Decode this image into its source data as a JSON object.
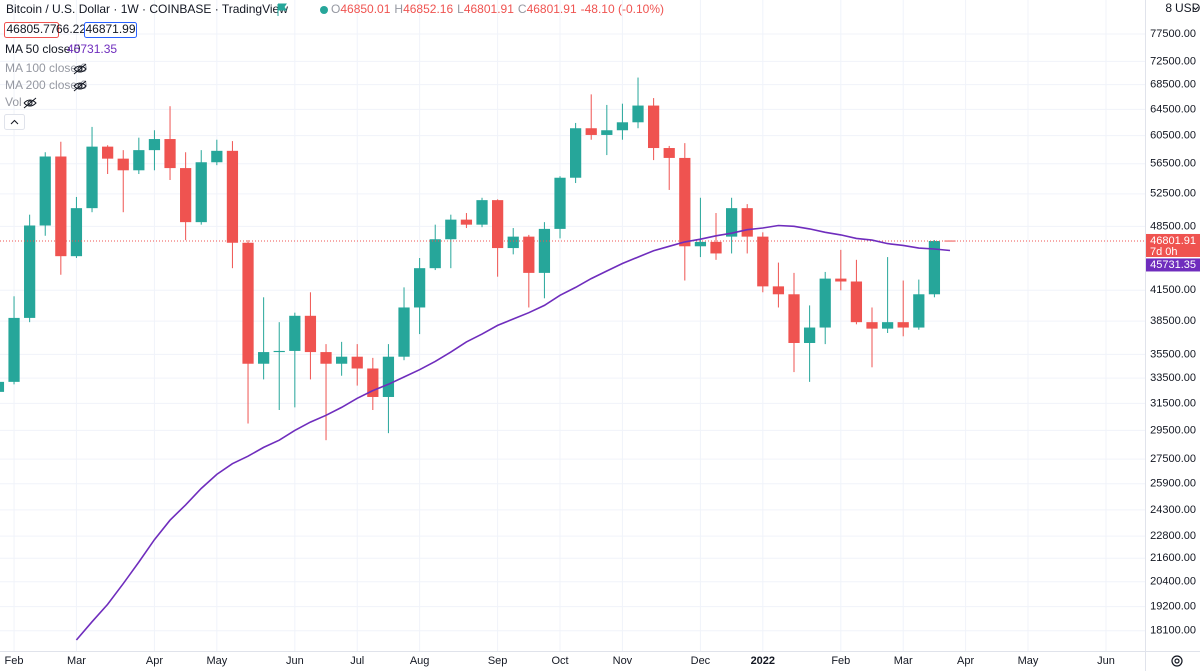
{
  "header": {
    "title": "Bitcoin / U.S. Dollar · 1W · COINBASE · TradingView",
    "ohlc_labels": [
      "O",
      "H",
      "L",
      "C"
    ],
    "change": "-48.10 (-0.10%)",
    "bid": "46805.77",
    "spread": "66.22",
    "ask": "46871.99"
  },
  "indicators": [
    "MA 100 close 0",
    "MA 200 close 0",
    "Vol"
  ],
  "axis": {
    "scale_count": "8",
    "currency": "USD",
    "countdown": "7d 0h"
  },
  "chart_data": {
    "type": "candlestick",
    "log_scale": true,
    "grid": true,
    "up_color": "#26a69a",
    "down_color": "#ef5350",
    "candles": {
      "open": [
        32400,
        33200,
        38800,
        48600,
        57500,
        45100,
        50700,
        58900,
        57200,
        55600,
        58400,
        60000,
        55900,
        49000,
        56700,
        58300,
        46600,
        34700,
        35700,
        35800,
        39000,
        35700,
        34700,
        35300,
        34300,
        32000,
        35300,
        39800,
        43800,
        47000,
        49300,
        48700,
        51700,
        46000,
        47300,
        43300,
        48200,
        54600,
        61600,
        60600,
        61300,
        62500,
        65100,
        58700,
        57300,
        46200,
        46700,
        47300,
        50700,
        47300,
        41900,
        41100,
        36500,
        37900,
        42700,
        42400,
        38400,
        37800,
        38400,
        37900,
        41100,
        46850.01
      ],
      "high": [
        33400,
        40900,
        49900,
        58100,
        59600,
        52100,
        61800,
        59100,
        58400,
        60200,
        61300,
        65000,
        58100,
        58400,
        59900,
        59700,
        46900,
        40800,
        38400,
        39300,
        41300,
        36400,
        36600,
        36400,
        35200,
        36400,
        41800,
        44900,
        48700,
        49900,
        50100,
        52000,
        51800,
        48300,
        47500,
        49000,
        54800,
        62400,
        66900,
        65200,
        65400,
        69700,
        66300,
        59000,
        59400,
        52000,
        50100,
        52000,
        51200,
        47800,
        44400,
        43300,
        40000,
        43400,
        45800,
        44700,
        39800,
        45000,
        42500,
        42600,
        46900,
        46852.16
      ],
      "low": [
        32200,
        33000,
        38400,
        47400,
        43100,
        44900,
        50200,
        55100,
        50200,
        55100,
        55600,
        54300,
        46900,
        48700,
        56300,
        43800,
        30000,
        33400,
        31000,
        31200,
        33400,
        28800,
        33700,
        32900,
        31000,
        29300,
        35000,
        37300,
        43600,
        43800,
        48300,
        48400,
        42900,
        45300,
        39800,
        40700,
        47100,
        53900,
        59900,
        57700,
        59900,
        61600,
        57000,
        53000,
        42500,
        45000,
        44700,
        45400,
        45400,
        41300,
        39800,
        34000,
        33200,
        36400,
        41500,
        38200,
        34400,
        37400,
        37100,
        37700,
        40800,
        46801.91
      ],
      "close": [
        33200,
        38800,
        48600,
        57500,
        45100,
        50700,
        58900,
        57200,
        55600,
        58400,
        60000,
        55900,
        49000,
        56700,
        58300,
        46600,
        34700,
        35700,
        35800,
        39000,
        35700,
        34700,
        35300,
        34300,
        32000,
        35300,
        39800,
        43800,
        47000,
        49300,
        48700,
        51700,
        46000,
        47300,
        43300,
        48200,
        54600,
        61600,
        60600,
        61300,
        62500,
        65100,
        58700,
        57300,
        46200,
        46700,
        45400,
        50700,
        47300,
        41900,
        41100,
        36500,
        37900,
        42700,
        42400,
        38400,
        37800,
        38400,
        37900,
        41100,
        46800,
        46801.91
      ]
    },
    "series": [
      {
        "name": "MA 50 close 0",
        "color": "#6f2dbd",
        "values": [
          null,
          null,
          null,
          null,
          null,
          17700,
          18500,
          19300,
          20300,
          21400,
          22600,
          23700,
          24600,
          25600,
          26500,
          27200,
          27700,
          28300,
          28800,
          29500,
          30100,
          30600,
          31200,
          31900,
          32500,
          33000,
          33600,
          34200,
          34900,
          35700,
          36600,
          37300,
          38100,
          38700,
          39300,
          40000,
          41000,
          41800,
          42700,
          43500,
          44300,
          45000,
          45700,
          46200,
          46700,
          47000,
          47400,
          47700,
          48100,
          48300,
          48600,
          48500,
          48200,
          47800,
          47500,
          47100,
          46900,
          46500,
          46300,
          46000,
          45900,
          45731.35
        ]
      }
    ],
    "ylim": [
      17230,
      84200
    ],
    "yticks": [
      {
        "value": 77500,
        "label": "77500.00"
      },
      {
        "value": 72500,
        "label": "72500.00"
      },
      {
        "value": 68500,
        "label": "68500.00"
      },
      {
        "value": 64500,
        "label": "64500.00"
      },
      {
        "value": 60500,
        "label": "60500.00"
      },
      {
        "value": 56500,
        "label": "56500.00"
      },
      {
        "value": 52500,
        "label": "52500.00"
      },
      {
        "value": 48500,
        "label": "48500.00"
      },
      {
        "value": 41500,
        "label": "41500.00"
      },
      {
        "value": 38500,
        "label": "38500.00"
      },
      {
        "value": 35500,
        "label": "35500.00"
      },
      {
        "value": 33500,
        "label": "33500.00"
      },
      {
        "value": 31500,
        "label": "31500.00"
      },
      {
        "value": 29500,
        "label": "29500.00"
      },
      {
        "value": 27500,
        "label": "27500.00"
      },
      {
        "value": 25900,
        "label": "25900.00"
      },
      {
        "value": 24300,
        "label": "24300.00"
      },
      {
        "value": 22800,
        "label": "22800.00"
      },
      {
        "value": 21600,
        "label": "21600.00"
      },
      {
        "value": 20400,
        "label": "20400.00"
      },
      {
        "value": 19200,
        "label": "19200.00"
      },
      {
        "value": 18100,
        "label": "18100.00"
      }
    ],
    "xlim": [
      0.1,
      73.5
    ],
    "xticks": [
      {
        "value": 1,
        "label": "Feb"
      },
      {
        "value": 5,
        "label": "Mar"
      },
      {
        "value": 10,
        "label": "Apr"
      },
      {
        "value": 14,
        "label": "May"
      },
      {
        "value": 19,
        "label": "Jun"
      },
      {
        "value": 23,
        "label": "Jul"
      },
      {
        "value": 27,
        "label": "Aug"
      },
      {
        "value": 32,
        "label": "Sep"
      },
      {
        "value": 36,
        "label": "Oct"
      },
      {
        "value": 40,
        "label": "Nov"
      },
      {
        "value": 45,
        "label": "Dec"
      },
      {
        "value": 49,
        "label": "2022"
      },
      {
        "value": 54,
        "label": "Feb"
      },
      {
        "value": 58,
        "label": "Mar"
      },
      {
        "value": 62,
        "label": "Apr"
      },
      {
        "value": 66,
        "label": "May"
      },
      {
        "value": 71,
        "label": "Jun"
      }
    ]
  }
}
